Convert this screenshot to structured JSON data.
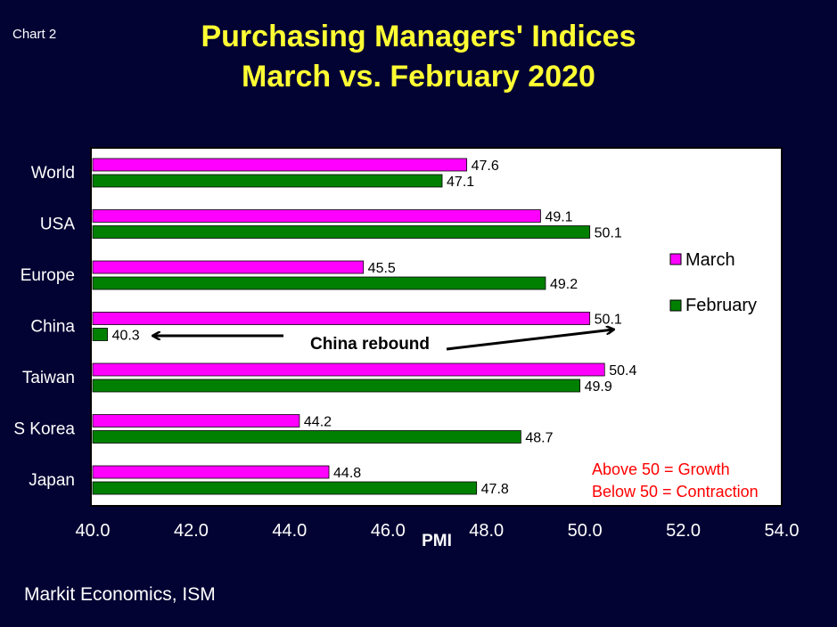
{
  "chart_id": "Chart 2",
  "title_line1": "Purchasing Managers' Indices",
  "title_line2": "March vs. February 2020",
  "source": "Markit Economics, ISM",
  "colors": {
    "background": "#020233",
    "title": "#ffff33",
    "march": "#ff00ff",
    "february": "#008000",
    "note": "#ff0000"
  },
  "annotation": "China rebound",
  "note_lines": [
    "Above 50 = Growth",
    "Below 50 = Contraction"
  ],
  "chart_data": {
    "type": "bar",
    "orientation": "horizontal",
    "categories": [
      "World",
      "USA",
      "Europe",
      "China",
      "Taiwan",
      "S Korea",
      "Japan"
    ],
    "series": [
      {
        "name": "March",
        "values": [
          47.6,
          49.1,
          45.5,
          50.1,
          50.4,
          44.2,
          44.8
        ],
        "labels": [
          "47.6",
          "49.1",
          "45.5",
          "50.1",
          "50.4",
          "44.2",
          "44.8"
        ]
      },
      {
        "name": "February",
        "values": [
          47.1,
          50.1,
          49.2,
          40.3,
          49.9,
          48.7,
          47.8
        ],
        "labels": [
          "47.1",
          "50.1",
          "49.2",
          "40.3",
          "49.9",
          "48.7",
          "47.8"
        ]
      }
    ],
    "xlabel": "PMI",
    "xlim": [
      40.0,
      54.0
    ],
    "xticks": [
      "40.0",
      "42.0",
      "44.0",
      "46.0",
      "48.0",
      "50.0",
      "52.0",
      "54.0"
    ],
    "legend_position": "right",
    "grid": false
  }
}
